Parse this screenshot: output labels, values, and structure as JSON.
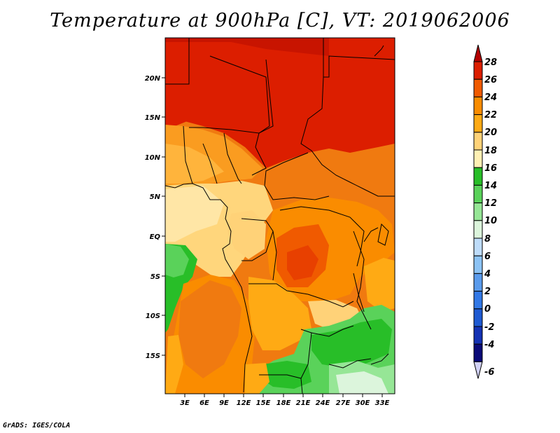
{
  "title": "Temperature at 900hPa [C], VT: 2019062006",
  "footer": "GrADS: IGES/COLA",
  "map": {
    "lat_labels": [
      "20N",
      "15N",
      "10N",
      "5N",
      "EQ",
      "5S",
      "10S",
      "15S"
    ],
    "lon_labels": [
      "3E",
      "6E",
      "9E",
      "12E",
      "15E",
      "18E",
      "21E",
      "24E",
      "27E",
      "30E",
      "33E"
    ]
  },
  "colorbar": {
    "labels": [
      "28",
      "26",
      "24",
      "22",
      "20",
      "18",
      "16",
      "14",
      "12",
      "10",
      "8",
      "6",
      "4",
      "2",
      "0",
      "-2",
      "-4",
      "-6"
    ],
    "colors": [
      "#b40000",
      "#dc1e00",
      "#f05a00",
      "#fa8c00",
      "#ffaa14",
      "#ffd278",
      "#fff0b4",
      "#28be28",
      "#5ad25a",
      "#96e696",
      "#dcf5dc",
      "#bedcfa",
      "#8cc3f5",
      "#5a9bec",
      "#3278e6",
      "#1e5ad2",
      "#1432b4",
      "#0a0a78",
      "#d2d2f5"
    ]
  }
}
